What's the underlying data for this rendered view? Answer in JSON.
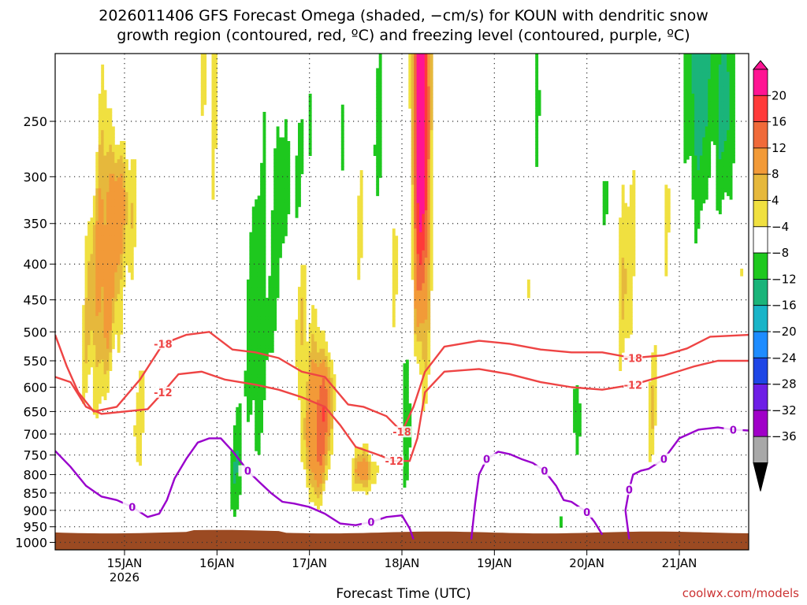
{
  "title": {
    "line1": "2026011406 GFS Forecast Omega (shaded, −cm/s) for KOUN with dendritic snow",
    "line2": "growth region (contoured, red, ºC) and freezing level (contoured, purple, ºC)"
  },
  "xlabel": "Forecast Time (UTC)",
  "credit": "coolwx.com/models",
  "chart_data": {
    "type": "heatmap",
    "x_ticks": [
      {
        "label": "15JAN",
        "sub": "2026",
        "t": 18
      },
      {
        "label": "16JAN",
        "t": 42
      },
      {
        "label": "17JAN",
        "t": 66
      },
      {
        "label": "18JAN",
        "t": 90
      },
      {
        "label": "19JAN",
        "t": 114
      },
      {
        "label": "20JAN",
        "t": 138
      },
      {
        "label": "21JAN",
        "t": 162
      }
    ],
    "x_range_hours": [
      0,
      180
    ],
    "y_ticks": [
      250,
      300,
      350,
      400,
      450,
      500,
      550,
      600,
      650,
      700,
      750,
      800,
      850,
      900,
      950,
      1000
    ],
    "y_range_hpa": [
      200,
      1025
    ],
    "y_scale": "log",
    "colorbar": {
      "labels": [
        "20",
        "16",
        "12",
        "8",
        "4",
        "−4",
        "−8",
        "−12",
        "−16",
        "−20",
        "−24",
        "−28",
        "−32",
        "−36"
      ],
      "colors": [
        "#ff1493",
        "#ff3a3a",
        "#f06a3a",
        "#f29a38",
        "#e6b83c",
        "#f0e040",
        "#ffffff",
        "#1ec81e",
        "#1ab47a",
        "#19b4c8",
        "#1e8cff",
        "#1e46e6",
        "#6e1ee6",
        "#a000c8",
        "#a8a8a8",
        "#000000"
      ]
    },
    "contours": [
      {
        "name": "dendritic",
        "label": "-18",
        "color": "#ee4444",
        "points": [
          [
            0,
            505
          ],
          [
            3,
            560
          ],
          [
            6,
            610
          ],
          [
            10,
            650
          ],
          [
            16,
            640
          ],
          [
            22,
            585
          ],
          [
            28,
            520
          ],
          [
            34,
            505
          ],
          [
            40,
            500
          ],
          [
            46,
            530
          ],
          [
            52,
            535
          ],
          [
            58,
            545
          ],
          [
            64,
            570
          ],
          [
            70,
            580
          ],
          [
            76,
            635
          ],
          [
            80,
            640
          ],
          [
            86,
            660
          ],
          [
            90,
            695
          ],
          [
            93,
            640
          ],
          [
            96,
            570
          ],
          [
            101,
            525
          ],
          [
            110,
            515
          ],
          [
            118,
            520
          ],
          [
            126,
            530
          ],
          [
            134,
            535
          ],
          [
            142,
            535
          ],
          [
            150,
            545
          ],
          [
            158,
            540
          ],
          [
            164,
            528
          ],
          [
            170,
            508
          ],
          [
            180,
            505
          ]
        ]
      },
      {
        "name": "dendritic",
        "label": "-12",
        "color": "#ee4444",
        "points": [
          [
            0,
            580
          ],
          [
            4,
            590
          ],
          [
            8,
            640
          ],
          [
            12,
            655
          ],
          [
            18,
            650
          ],
          [
            24,
            645
          ],
          [
            28,
            610
          ],
          [
            32,
            575
          ],
          [
            38,
            570
          ],
          [
            44,
            585
          ],
          [
            52,
            595
          ],
          [
            58,
            605
          ],
          [
            64,
            620
          ],
          [
            70,
            640
          ],
          [
            74,
            680
          ],
          [
            78,
            730
          ],
          [
            84,
            750
          ],
          [
            88,
            765
          ],
          [
            92,
            765
          ],
          [
            94,
            710
          ],
          [
            96,
            610
          ],
          [
            101,
            570
          ],
          [
            110,
            565
          ],
          [
            118,
            575
          ],
          [
            126,
            590
          ],
          [
            134,
            600
          ],
          [
            142,
            605
          ],
          [
            150,
            595
          ],
          [
            158,
            578
          ],
          [
            166,
            560
          ],
          [
            172,
            550
          ],
          [
            180,
            550
          ]
        ]
      },
      {
        "name": "freezing",
        "label": "0",
        "color": "#9900cc",
        "points": [
          [
            0,
            740
          ],
          [
            4,
            780
          ],
          [
            8,
            830
          ],
          [
            12,
            860
          ],
          [
            16,
            870
          ],
          [
            20,
            890
          ],
          [
            24,
            920
          ],
          [
            27,
            910
          ],
          [
            29,
            870
          ],
          [
            31,
            810
          ],
          [
            34,
            760
          ],
          [
            37,
            720
          ],
          [
            40,
            710
          ],
          [
            43,
            710
          ],
          [
            46,
            740
          ],
          [
            50,
            790
          ],
          [
            53,
            820
          ],
          [
            56,
            850
          ],
          [
            59,
            875
          ],
          [
            62,
            880
          ],
          [
            66,
            890
          ],
          [
            70,
            910
          ],
          [
            74,
            940
          ],
          [
            78,
            945
          ],
          [
            82,
            935
          ],
          [
            86,
            920
          ],
          [
            90,
            915
          ],
          [
            92,
            955
          ],
          [
            93,
            990
          ]
        ]
      },
      {
        "name": "freezing",
        "label": "0",
        "color": "#9900cc",
        "points": [
          [
            108,
            990
          ],
          [
            109,
            880
          ],
          [
            110,
            800
          ],
          [
            112,
            760
          ],
          [
            115,
            742
          ],
          [
            118,
            748
          ],
          [
            121,
            760
          ],
          [
            124,
            770
          ],
          [
            127,
            790
          ],
          [
            130,
            830
          ],
          [
            132,
            870
          ],
          [
            134,
            875
          ],
          [
            136,
            890
          ],
          [
            138,
            905
          ],
          [
            140,
            935
          ],
          [
            142,
            975
          ]
        ]
      },
      {
        "name": "freezing",
        "label": "0",
        "color": "#9900cc",
        "points": [
          [
            149,
            990
          ],
          [
            148,
            900
          ],
          [
            149,
            840
          ],
          [
            150,
            800
          ],
          [
            152,
            790
          ],
          [
            154,
            785
          ],
          [
            158,
            760
          ],
          [
            162,
            710
          ],
          [
            167,
            690
          ],
          [
            172,
            685
          ],
          [
            176,
            690
          ],
          [
            180,
            692
          ]
        ]
      }
    ]
  }
}
